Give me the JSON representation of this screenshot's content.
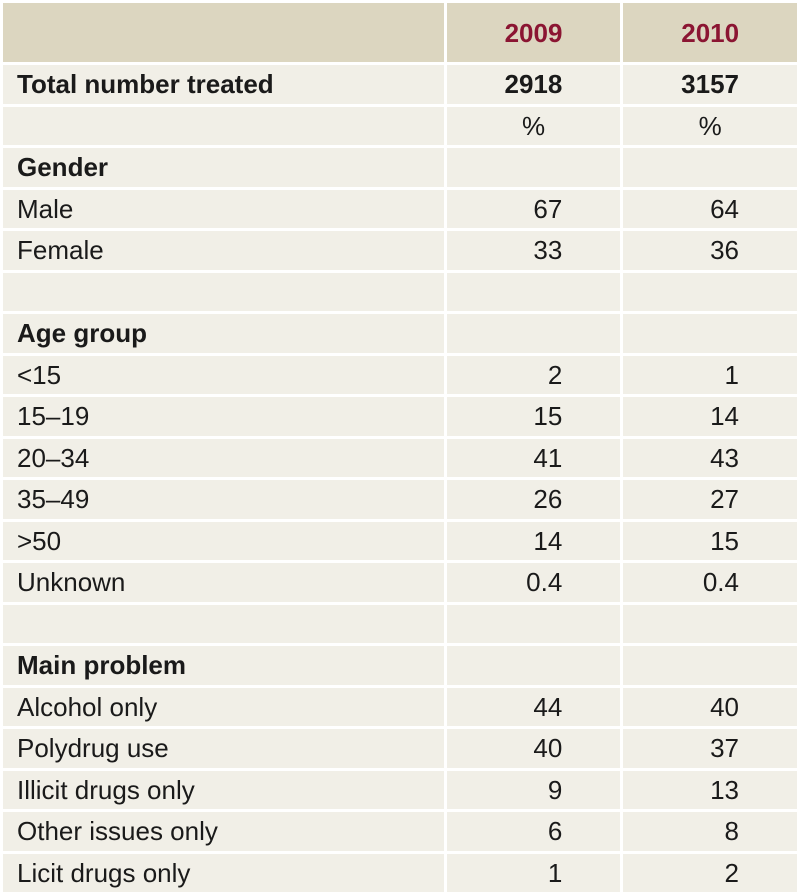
{
  "header": {
    "label": "",
    "years": [
      "2009",
      "2010"
    ]
  },
  "total": {
    "label": "Total number treated",
    "y2009": "2918",
    "y2010": "3157"
  },
  "units": {
    "y2009": "%",
    "y2010": "%"
  },
  "gender": {
    "title": "Gender",
    "rows": [
      {
        "label": "Male",
        "y2009": "67",
        "y2010": "64"
      },
      {
        "label": "Female",
        "y2009": "33",
        "y2010": "36"
      }
    ]
  },
  "age_group": {
    "title": "Age group",
    "rows": [
      {
        "label": "<15",
        "y2009": "2",
        "y2010": "1"
      },
      {
        "label": "15–19",
        "y2009": "15",
        "y2010": "14"
      },
      {
        "label": "20–34",
        "y2009": "41",
        "y2010": "43"
      },
      {
        "label": "35–49",
        "y2009": "26",
        "y2010": "27"
      },
      {
        "label": ">50",
        "y2009": "14",
        "y2010": "15"
      },
      {
        "label": "Unknown",
        "y2009": "0.4",
        "y2010": "0.4"
      }
    ]
  },
  "main_problem": {
    "title": "Main problem",
    "rows": [
      {
        "label": "Alcohol only",
        "y2009": "44",
        "y2010": "40"
      },
      {
        "label": "Polydrug use",
        "y2009": "40",
        "y2010": "37"
      },
      {
        "label": "Illicit drugs only",
        "y2009": "9",
        "y2010": "13"
      },
      {
        "label": "Other issues only",
        "y2009": "6",
        "y2010": "8"
      },
      {
        "label": "Licit drugs only",
        "y2009": "1",
        "y2010": "2"
      }
    ]
  },
  "colors": {
    "header_bg": "#dcd6c0",
    "cell_bg": "#f1efe7",
    "year_text": "#8b1532"
  }
}
